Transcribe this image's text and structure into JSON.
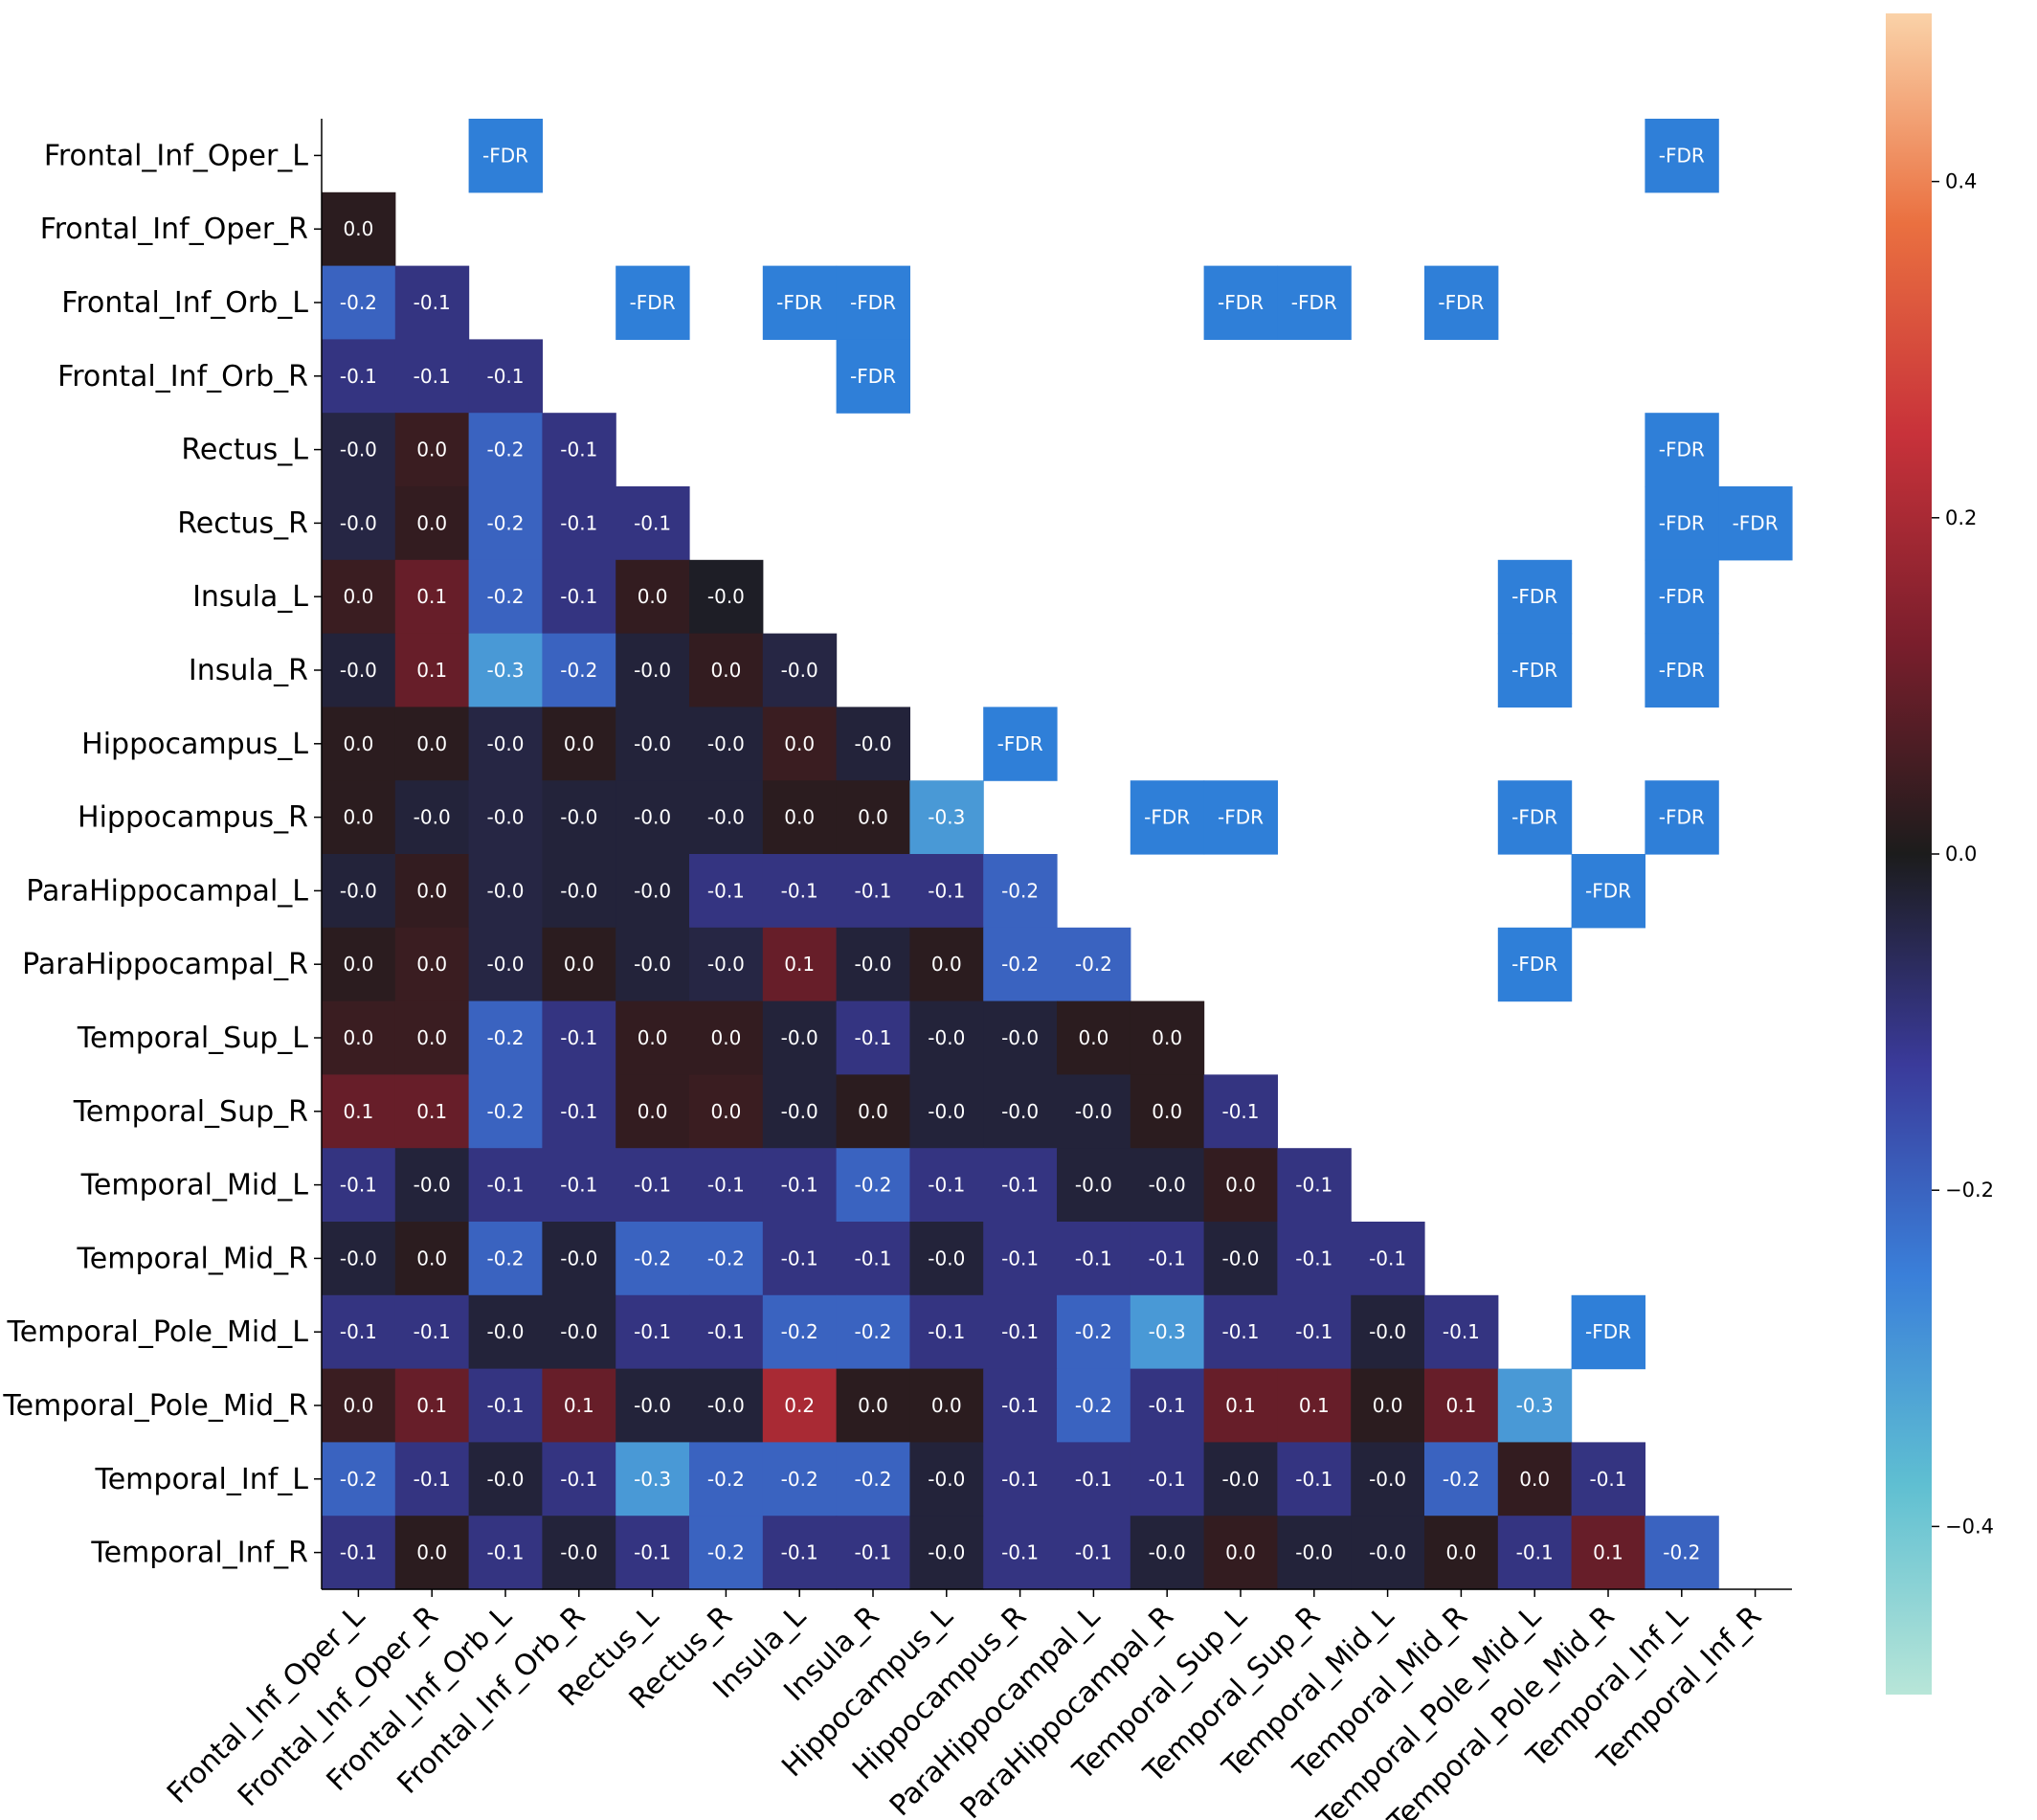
{
  "chart_data": {
    "type": "heatmap",
    "labels": [
      "Frontal_Inf_Oper_L",
      "Frontal_Inf_Oper_R",
      "Frontal_Inf_Orb_L",
      "Frontal_Inf_Orb_R",
      "Rectus_L",
      "Rectus_R",
      "Insula_L",
      "Insula_R",
      "Hippocampus_L",
      "Hippocampus_R",
      "ParaHippocampal_L",
      "ParaHippocampal_R",
      "Temporal_Sup_L",
      "Temporal_Sup_R",
      "Temporal_Mid_L",
      "Temporal_Mid_R",
      "Temporal_Pole_Mid_L",
      "Temporal_Pole_Mid_R",
      "Temporal_Inf_L",
      "Temporal_Inf_R"
    ],
    "lower_triangle_values": [
      [],
      [
        0.02
      ],
      [
        -0.2,
        -0.1
      ],
      [
        -0.1,
        -0.1,
        -0.1
      ],
      [
        -0.04,
        0.04,
        -0.2,
        -0.1
      ],
      [
        -0.04,
        0.03,
        -0.2,
        -0.1,
        -0.1
      ],
      [
        0.04,
        0.1,
        -0.2,
        -0.1,
        0.03,
        -0.01
      ],
      [
        -0.03,
        0.1,
        -0.3,
        -0.2,
        -0.03,
        0.03,
        -0.04
      ],
      [
        0.02,
        0.02,
        -0.04,
        0.02,
        -0.03,
        -0.03,
        0.04,
        -0.03
      ],
      [
        0.02,
        -0.03,
        -0.04,
        -0.03,
        -0.03,
        -0.03,
        0.02,
        0.02,
        -0.3
      ],
      [
        -0.03,
        0.03,
        -0.04,
        -0.03,
        -0.03,
        -0.1,
        -0.1,
        -0.1,
        -0.1,
        -0.2
      ],
      [
        0.02,
        0.04,
        -0.04,
        0.02,
        -0.03,
        -0.04,
        0.1,
        -0.03,
        0.02,
        -0.2,
        -0.2
      ],
      [
        0.04,
        0.04,
        -0.2,
        -0.1,
        0.03,
        0.03,
        -0.03,
        -0.1,
        -0.03,
        -0.03,
        0.02,
        0.02
      ],
      [
        0.1,
        0.1,
        -0.2,
        -0.1,
        0.03,
        0.04,
        -0.03,
        0.02,
        -0.03,
        -0.03,
        -0.03,
        0.02,
        -0.1
      ],
      [
        -0.1,
        -0.03,
        -0.1,
        -0.1,
        -0.1,
        -0.1,
        -0.1,
        -0.2,
        -0.1,
        -0.1,
        -0.03,
        -0.03,
        0.03,
        -0.1
      ],
      [
        -0.03,
        0.02,
        -0.2,
        -0.03,
        -0.2,
        -0.2,
        -0.1,
        -0.1,
        -0.03,
        -0.1,
        -0.1,
        -0.1,
        -0.03,
        -0.1,
        -0.1
      ],
      [
        -0.1,
        -0.1,
        -0.03,
        -0.03,
        -0.1,
        -0.1,
        -0.2,
        -0.2,
        -0.1,
        -0.1,
        -0.2,
        -0.3,
        -0.1,
        -0.1,
        -0.03,
        -0.1
      ],
      [
        0.04,
        0.1,
        -0.1,
        0.1,
        -0.03,
        -0.03,
        0.2,
        0.02,
        0.02,
        -0.1,
        -0.2,
        -0.1,
        0.1,
        0.1,
        0.02,
        0.1,
        -0.3
      ],
      [
        -0.2,
        -0.1,
        -0.03,
        -0.1,
        -0.3,
        -0.2,
        -0.2,
        -0.2,
        -0.03,
        -0.1,
        -0.1,
        -0.1,
        -0.03,
        -0.1,
        -0.03,
        -0.2,
        0.03,
        -0.1
      ],
      [
        -0.1,
        0.02,
        -0.1,
        -0.03,
        -0.1,
        -0.2,
        -0.1,
        -0.1,
        -0.03,
        -0.1,
        -0.1,
        -0.03,
        0.03,
        -0.03,
        -0.03,
        0.02,
        -0.1,
        0.1,
        -0.2
      ]
    ],
    "fdr_label": "-FDR",
    "fdr_cells": [
      [
        0,
        2
      ],
      [
        0,
        18
      ],
      [
        2,
        4
      ],
      [
        2,
        6
      ],
      [
        2,
        7
      ],
      [
        2,
        12
      ],
      [
        2,
        13
      ],
      [
        2,
        15
      ],
      [
        3,
        7
      ],
      [
        4,
        18
      ],
      [
        5,
        18
      ],
      [
        5,
        19
      ],
      [
        6,
        16
      ],
      [
        6,
        18
      ],
      [
        7,
        16
      ],
      [
        7,
        18
      ],
      [
        8,
        9
      ],
      [
        9,
        11
      ],
      [
        9,
        12
      ],
      [
        9,
        16
      ],
      [
        9,
        18
      ],
      [
        10,
        17
      ],
      [
        11,
        16
      ],
      [
        16,
        17
      ]
    ],
    "colorbar": {
      "range": [
        -0.5,
        0.5
      ],
      "ticks": [
        "0.4",
        "0.2",
        "0.0",
        "−0.2",
        "−0.4"
      ]
    },
    "colors": {
      "fdr": "#2f7fd8",
      "text": "#ffffff"
    }
  }
}
